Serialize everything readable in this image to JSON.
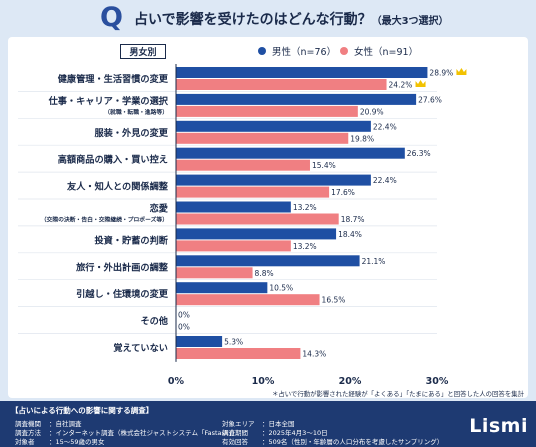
{
  "header": {
    "q_mark": "Q",
    "title": "占いで影響を受けたのはどんな行動？",
    "title_sub": "（最大3つ選択）"
  },
  "badge": "男女別",
  "legend": {
    "male": "男性（n=76）",
    "female": "女性（n=91）"
  },
  "colors": {
    "male": "#1f4fa3",
    "female": "#f07f82",
    "crown": "#f2c200"
  },
  "chart_data": {
    "type": "bar",
    "orientation": "horizontal",
    "categories": [
      {
        "label": "健康管理・生活習慣の変更",
        "sub": ""
      },
      {
        "label": "仕事・キャリア・学業の選択",
        "sub": "（就職・転職・進路等）"
      },
      {
        "label": "服装・外見の変更",
        "sub": ""
      },
      {
        "label": "高額商品の購入・買い控え",
        "sub": ""
      },
      {
        "label": "友人・知人との関係調整",
        "sub": ""
      },
      {
        "label": "恋愛",
        "sub": "（交際の決断・告白・交際継続・プロポーズ等）"
      },
      {
        "label": "投資・貯蓄の判断",
        "sub": ""
      },
      {
        "label": "旅行・外出計画の調整",
        "sub": ""
      },
      {
        "label": "引越し・住環境の変更",
        "sub": ""
      },
      {
        "label": "その他",
        "sub": ""
      },
      {
        "label": "覚えていない",
        "sub": ""
      }
    ],
    "series": [
      {
        "name": "男性（n=76）",
        "values": [
          28.9,
          27.6,
          22.4,
          26.3,
          22.4,
          13.2,
          18.4,
          21.1,
          10.5,
          0,
          5.3
        ]
      },
      {
        "name": "女性（n=91）",
        "values": [
          24.2,
          20.9,
          19.8,
          15.4,
          17.6,
          18.7,
          13.2,
          8.8,
          16.5,
          0,
          14.3
        ]
      }
    ],
    "value_labels": {
      "male": [
        "28.9%",
        "27.6%",
        "22.4%",
        "26.3%",
        "22.4%",
        "13.2%",
        "18.4%",
        "21.1%",
        "10.5%",
        "0%",
        "5.3%"
      ],
      "female": [
        "24.2%",
        "20.9%",
        "19.8%",
        "15.4%",
        "17.6%",
        "18.7%",
        "13.2%",
        "8.8%",
        "16.5%",
        "0%",
        "14.3%"
      ]
    },
    "top_marker": "crown",
    "xlim": [
      0,
      30
    ],
    "xticks": [
      "0%",
      "10%",
      "20%",
      "30%"
    ],
    "grid": false
  },
  "note": "＊占いで行動が影響された経験が「よくある」「たまにある」と回答した人の回答を集計",
  "footer": {
    "title": "【占いによる行動への影響に関する調査】",
    "left": [
      {
        "label": "調査機関",
        "value": "：自社調査"
      },
      {
        "label": "調査方法",
        "value": "：インターネット調査（株式会社ジャストシステム「Fastask」）"
      },
      {
        "label": "対象者",
        "value": "：15〜59歳の男女"
      }
    ],
    "right": [
      {
        "label": "対象エリア",
        "value": "：日本全国"
      },
      {
        "label": "調査期間",
        "value": "：2025年4月3〜10日"
      },
      {
        "label": "有効回答",
        "value": "：509名（性別・年齢層の人口分布を考慮したサンプリング）"
      }
    ],
    "logo": "Lismi"
  }
}
